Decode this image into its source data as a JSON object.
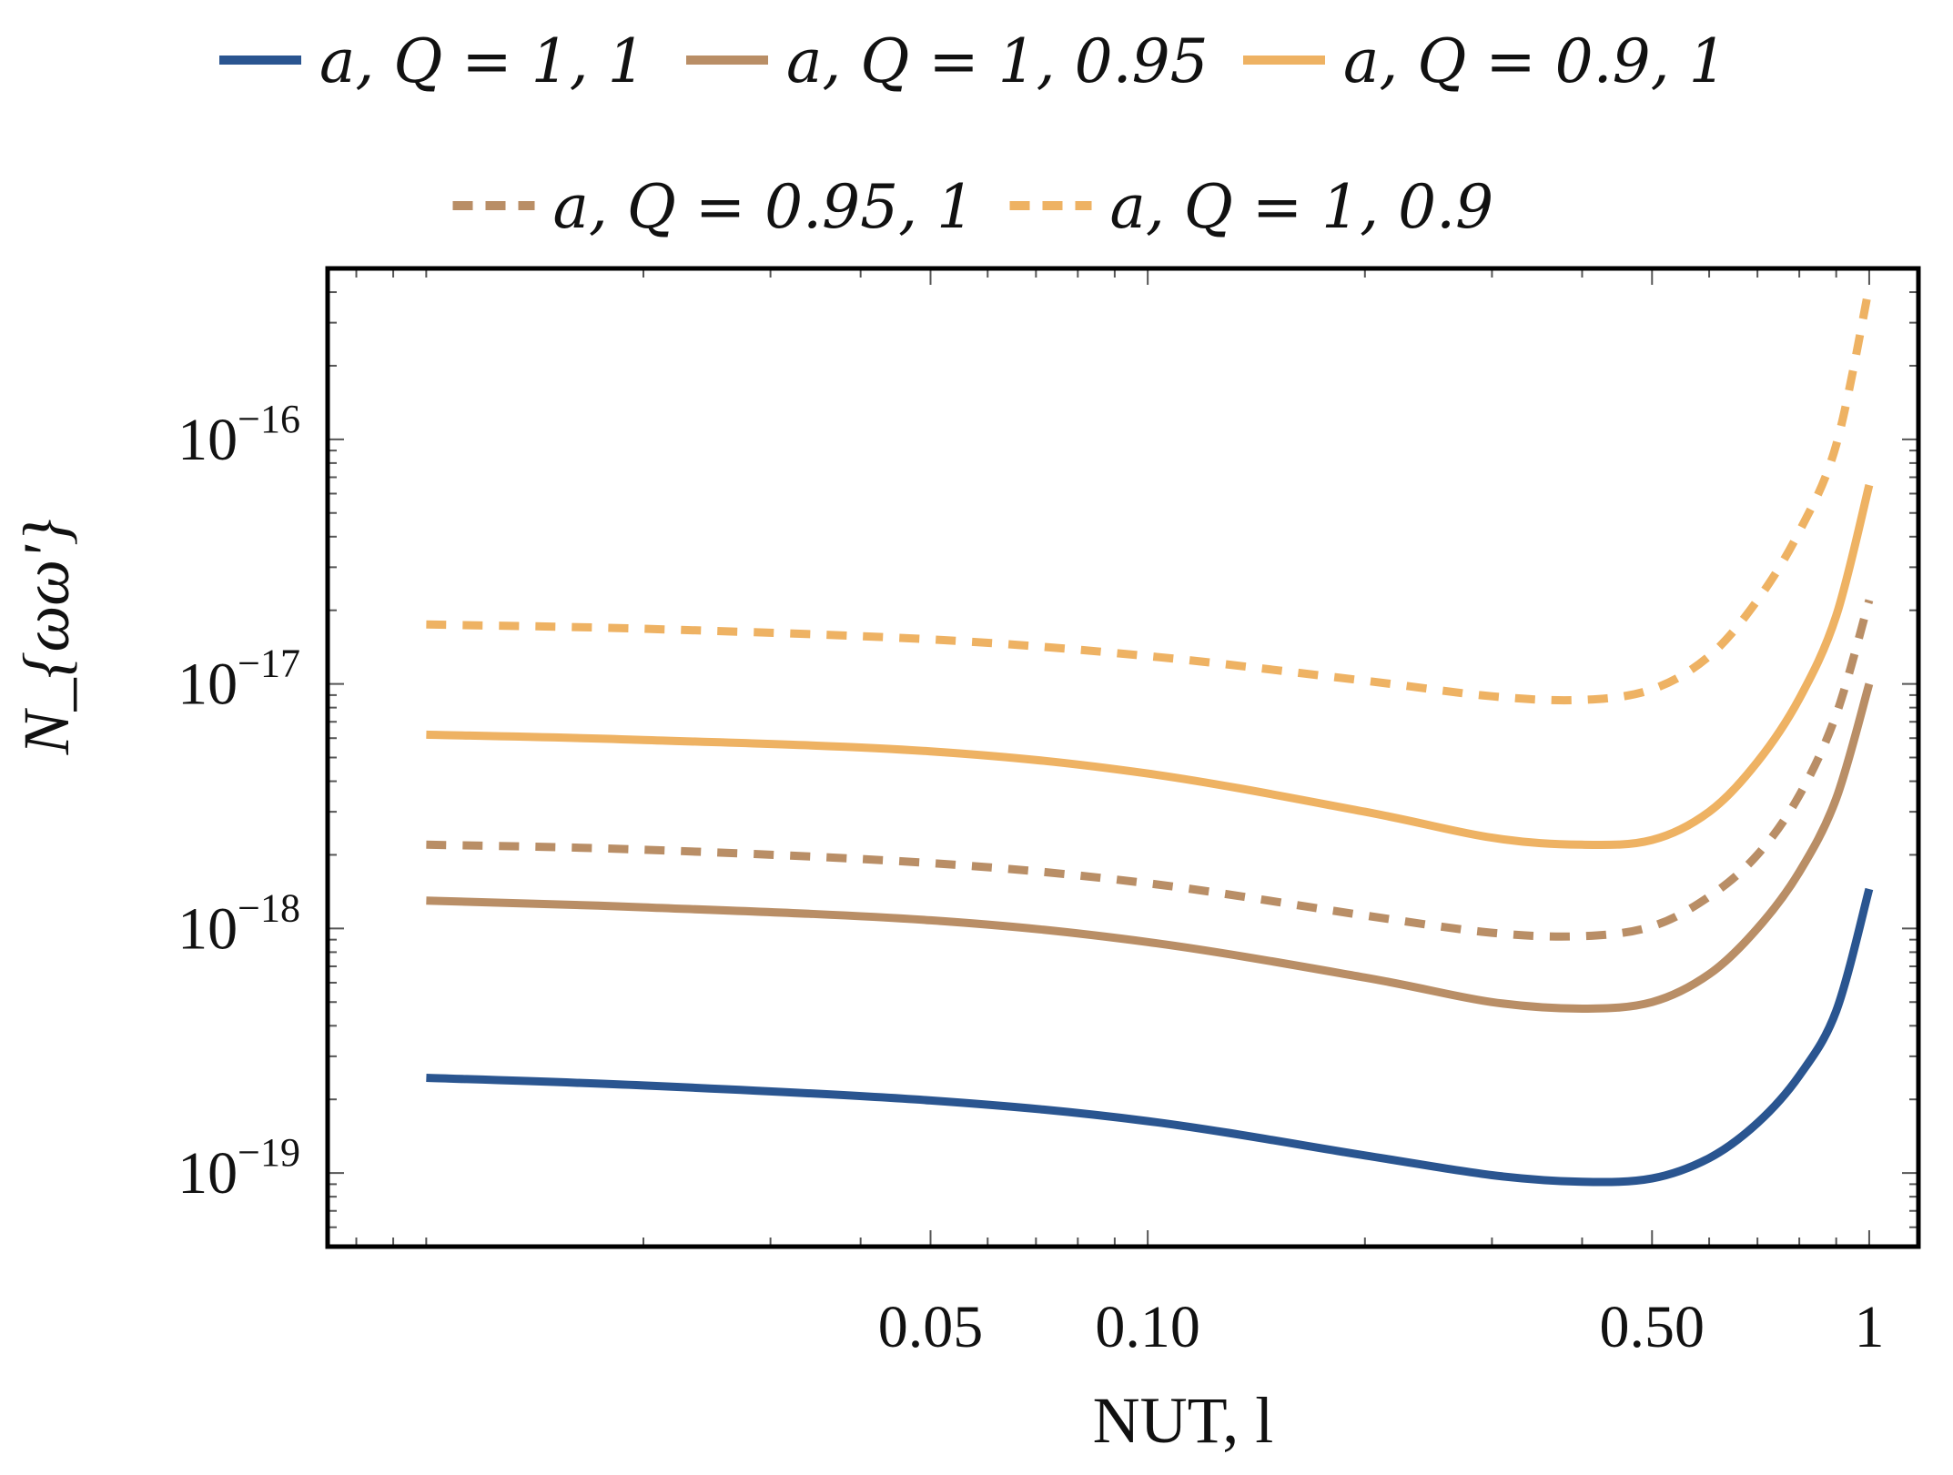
{
  "chart_data": {
    "type": "line",
    "title": "",
    "xlabel": "NUT, l",
    "ylabel": "N_{ωω'}",
    "xscale": "log",
    "yscale": "log",
    "xlim": [
      0.0073,
      1.17
    ],
    "ylim": [
      5e-20,
      5e-16
    ],
    "x_ticks": [
      {
        "value": 0.05,
        "label": "0.05"
      },
      {
        "value": 0.1,
        "label": "0.10"
      },
      {
        "value": 0.5,
        "label": "0.50"
      },
      {
        "value": 1,
        "label": "1"
      }
    ],
    "y_ticks": [
      {
        "value": 1e-16,
        "label": "10",
        "exp": "−16"
      },
      {
        "value": 1e-17,
        "label": "10",
        "exp": "−17"
      },
      {
        "value": 1e-18,
        "label": "10",
        "exp": "−18"
      },
      {
        "value": 1e-19,
        "label": "10",
        "exp": "−19"
      }
    ],
    "legend_position": "top",
    "x": [
      0.01,
      0.02,
      0.05,
      0.1,
      0.2,
      0.3,
      0.4,
      0.5,
      0.6,
      0.7,
      0.8,
      0.9,
      1.0
    ],
    "series": [
      {
        "name": "a, Q = 1, 1",
        "color": "#2a5590",
        "style": "solid",
        "values": [
          2.45e-19,
          2.28e-19,
          1.98e-19,
          1.63e-19,
          1.18e-19,
          9.8e-20,
          9.2e-20,
          9.5e-20,
          1.15e-19,
          1.6e-19,
          2.5e-19,
          4.6e-19,
          1.45e-18
        ]
      },
      {
        "name": "a, Q = 1, 0.95",
        "color": "#b98e66",
        "style": "solid",
        "values": [
          1.3e-18,
          1.22e-18,
          1.08e-18,
          8.8e-19,
          6.3e-19,
          5e-19,
          4.7e-19,
          5e-19,
          6.5e-19,
          1e-18,
          1.7e-18,
          3.4e-18,
          1e-17
        ]
      },
      {
        "name": "a, Q = 0.9, 1",
        "color": "#eeb263",
        "style": "solid",
        "values": [
          6.2e-18,
          5.9e-18,
          5.3e-18,
          4.3e-18,
          3e-18,
          2.35e-18,
          2.2e-18,
          2.3e-18,
          3e-18,
          4.8e-18,
          8.7e-18,
          1.9e-17,
          6.5e-17
        ]
      },
      {
        "name": "a, Q = 0.95, 1",
        "color": "#b98e66",
        "style": "dashed",
        "values": [
          2.2e-18,
          2.1e-18,
          1.85e-18,
          1.53e-18,
          1.13e-18,
          9.6e-19,
          9.3e-19,
          1.02e-18,
          1.35e-18,
          2e-18,
          3.5e-18,
          7.5e-18,
          2.2e-17
        ]
      },
      {
        "name": "a, Q = 1, 0.9",
        "color": "#eeb263",
        "style": "dashed",
        "values": [
          1.75e-17,
          1.68e-17,
          1.52e-17,
          1.3e-17,
          1.03e-17,
          8.9e-18,
          8.6e-18,
          9.5e-18,
          1.3e-17,
          2.2e-17,
          4.2e-17,
          9.5e-17,
          4.2e-16
        ]
      }
    ]
  }
}
